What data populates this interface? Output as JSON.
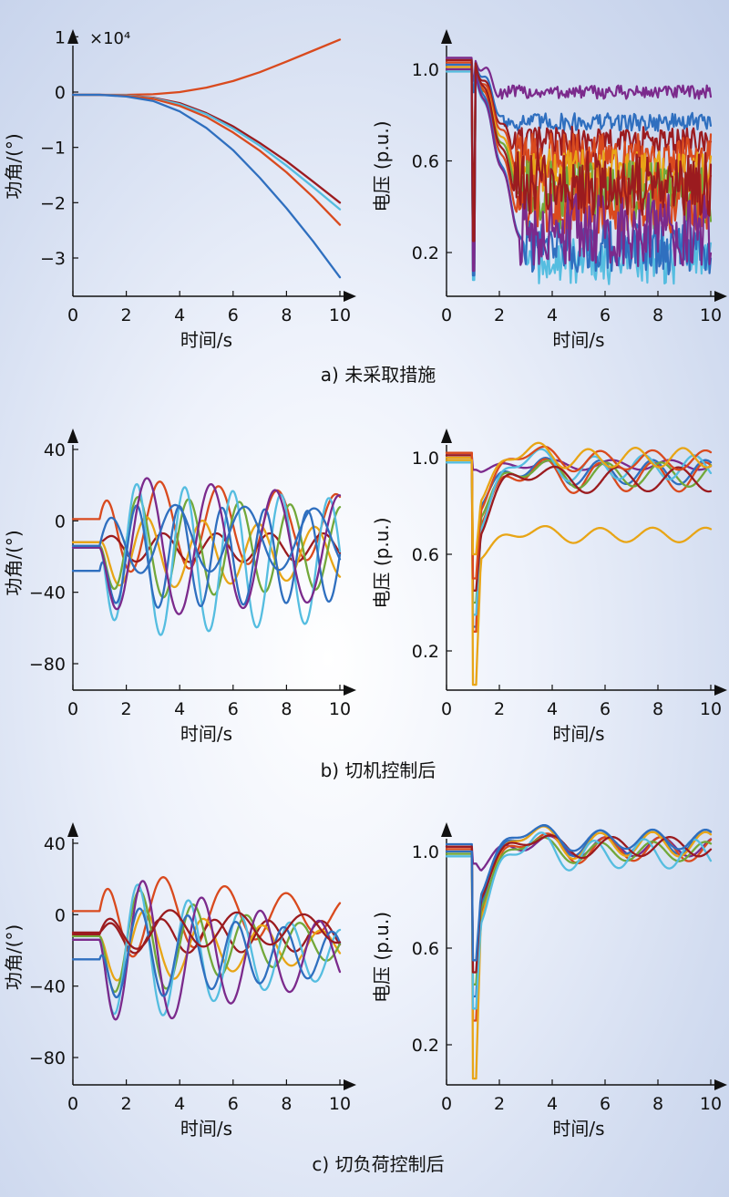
{
  "captions": [
    "a) 未采取措施",
    "b) 切机控制后",
    "c) 切负荷控制后"
  ],
  "palette": [
    "#2f6fbf",
    "#d94a1e",
    "#e8a516",
    "#7b2a8c",
    "#72a83a",
    "#55bde0",
    "#9b1b1f"
  ],
  "chart_data": [
    {
      "id": "a-angle",
      "type": "line",
      "xlabel": "时间/s",
      "ylabel": "功角/(°)",
      "multiplier": "×10⁴",
      "xlim": [
        0,
        10
      ],
      "ylim": [
        -3.6,
        1.0
      ],
      "xticks": [
        0,
        2,
        4,
        6,
        8,
        10
      ],
      "yticks": [
        1,
        0,
        -1,
        -2,
        -3
      ],
      "yticklabels": [
        "1",
        "0",
        "−1",
        "−2",
        "−3"
      ],
      "series": [
        {
          "color": "#d94a1e",
          "x": [
            0,
            1,
            2,
            3,
            4,
            5,
            6,
            7,
            8,
            9,
            10
          ],
          "y": [
            -0.05,
            -0.05,
            -0.05,
            -0.04,
            0.0,
            0.08,
            0.2,
            0.36,
            0.55,
            0.75,
            0.95
          ]
        },
        {
          "color": "#9b1b1f",
          "x": [
            0,
            1,
            2,
            3,
            4,
            5,
            6,
            7,
            8,
            9,
            10
          ],
          "y": [
            -0.05,
            -0.05,
            -0.06,
            -0.1,
            -0.2,
            -0.38,
            -0.62,
            -0.92,
            -1.25,
            -1.62,
            -2.0
          ]
        },
        {
          "color": "#55bde0",
          "x": [
            0,
            1,
            2,
            3,
            4,
            5,
            6,
            7,
            8,
            9,
            10
          ],
          "y": [
            -0.05,
            -0.05,
            -0.06,
            -0.11,
            -0.22,
            -0.4,
            -0.66,
            -0.97,
            -1.33,
            -1.72,
            -2.12
          ]
        },
        {
          "color": "#d94a1e",
          "x": [
            0,
            1,
            2,
            3,
            4,
            5,
            6,
            7,
            8,
            9,
            10
          ],
          "y": [
            -0.05,
            -0.05,
            -0.07,
            -0.12,
            -0.25,
            -0.45,
            -0.73,
            -1.06,
            -1.45,
            -1.9,
            -2.4
          ]
        },
        {
          "color": "#2f6fbf",
          "x": [
            0,
            1,
            2,
            3,
            4,
            5,
            6,
            7,
            8,
            9,
            10
          ],
          "y": [
            -0.05,
            -0.05,
            -0.08,
            -0.16,
            -0.35,
            -0.65,
            -1.05,
            -1.55,
            -2.1,
            -2.7,
            -3.35
          ]
        }
      ]
    },
    {
      "id": "a-voltage",
      "type": "line",
      "style": "unstable",
      "xlabel": "时间/s",
      "ylabel": "电压 (p.u.)",
      "xlim": [
        0,
        10
      ],
      "ylim": [
        0.0,
        1.15
      ],
      "xticks": [
        0,
        2,
        4,
        6,
        8,
        10
      ],
      "yticks": [
        1.0,
        0.6,
        0.2
      ],
      "yticklabels": [
        "1.0",
        "0.6",
        "0.2"
      ],
      "series": [
        {
          "color": "#7b2a8c",
          "base": 1.05,
          "dip": 0.95,
          "settle": 0.9,
          "noise": 0.03,
          "reach": 2.0
        },
        {
          "color": "#2f6fbf",
          "base": 1.04,
          "dip": 0.9,
          "settle": 0.77,
          "noise": 0.04,
          "reach": 2.2
        },
        {
          "color": "#9b1b1f",
          "base": 1.03,
          "dip": 0.45,
          "settle": 0.68,
          "noise": 0.07,
          "reach": 2.4
        },
        {
          "color": "#d94a1e",
          "base": 1.02,
          "dip": 0.3,
          "settle": 0.62,
          "noise": 0.1,
          "reach": 2.5
        },
        {
          "color": "#e8a516",
          "base": 1.01,
          "dip": 0.15,
          "settle": 0.55,
          "noise": 0.1,
          "reach": 2.6
        },
        {
          "color": "#72a83a",
          "base": 1.0,
          "dip": 0.1,
          "settle": 0.45,
          "noise": 0.15,
          "reach": 2.8
        },
        {
          "color": "#d94a1e",
          "base": 1.03,
          "dip": 0.2,
          "settle": 0.42,
          "noise": 0.14,
          "reach": 2.6
        },
        {
          "color": "#55bde0",
          "base": 0.99,
          "dip": 0.08,
          "settle": 0.18,
          "noise": 0.12,
          "reach": 3.0
        },
        {
          "color": "#2f6fbf",
          "base": 1.02,
          "dip": 0.1,
          "settle": 0.22,
          "noise": 0.12,
          "reach": 2.9
        },
        {
          "color": "#7b2a8c",
          "base": 1.0,
          "dip": 0.12,
          "settle": 0.3,
          "noise": 0.16,
          "reach": 2.7
        },
        {
          "color": "#9b1b1f",
          "base": 1.04,
          "dip": 0.25,
          "settle": 0.5,
          "noise": 0.14,
          "reach": 2.5
        }
      ]
    },
    {
      "id": "b-angle",
      "type": "line",
      "xlabel": "时间/s",
      "ylabel": "功角/(°)",
      "xlim": [
        0,
        10
      ],
      "ylim": [
        -95,
        55
      ],
      "xticks": [
        0,
        2,
        4,
        6,
        8,
        10
      ],
      "yticks": [
        40,
        0,
        -40,
        -80
      ],
      "yticklabels": [
        "40",
        "0",
        "−40",
        "−80"
      ],
      "series": [
        {
          "color": "#d94a1e",
          "pre": 1,
          "onset": 1.0,
          "center": -3,
          "amp": 28,
          "period": 2.2,
          "phase": 1.4,
          "decay": 0.05
        },
        {
          "color": "#9b1b1f",
          "pre": -12,
          "onset": 1.0,
          "center": -15,
          "amp": 8,
          "period": 2.0,
          "phase": 0.4,
          "decay": 0.0
        },
        {
          "color": "#e8a516",
          "pre": -12,
          "onset": 1.0,
          "center": -18,
          "amp": 22,
          "period": 2.1,
          "phase": 2.6,
          "decay": 0.05
        },
        {
          "color": "#72a83a",
          "pre": -14,
          "onset": 1.0,
          "center": -15,
          "amp": 30,
          "period": 1.9,
          "phase": 3.1,
          "decay": 0.03
        },
        {
          "color": "#55bde0",
          "pre": -15,
          "onset": 1.0,
          "center": -22,
          "amp": 45,
          "period": 1.8,
          "phase": 3.0,
          "decay": 0.03
        },
        {
          "color": "#2f6fbf",
          "pre": -28,
          "onset": 1.0,
          "center": -20,
          "amp": 30,
          "period": 1.6,
          "phase": 2.4,
          "decay": 0.02
        },
        {
          "color": "#7b2a8c",
          "pre": -15,
          "onset": 1.0,
          "center": -15,
          "amp": 42,
          "period": 2.4,
          "phase": 3.2,
          "decay": 0.04
        },
        {
          "color": "#2f6fbf",
          "pre": -14,
          "onset": 1.0,
          "center": -10,
          "amp": 20,
          "period": 2.6,
          "phase": 1.0,
          "decay": 0.02
        }
      ]
    },
    {
      "id": "b-voltage",
      "type": "line",
      "style": "damped",
      "xlabel": "时间/s",
      "ylabel": "电压 (p.u.)",
      "xlim": [
        0,
        10
      ],
      "ylim": [
        0.0,
        1.15
      ],
      "xticks": [
        0,
        2,
        4,
        6,
        8,
        10
      ],
      "yticks": [
        1.0,
        0.6,
        0.2
      ],
      "yticklabels": [
        "1.0",
        "0.6",
        "0.2"
      ],
      "series": [
        {
          "color": "#7b2a8c",
          "base": 1.01,
          "spike": 0.95,
          "trough": 0.94,
          "settle": 0.97,
          "amp": 0.02,
          "period": 2.2
        },
        {
          "color": "#2f6fbf",
          "base": 1.0,
          "spike": 0.3,
          "trough": 0.8,
          "settle": 0.94,
          "amp": 0.05,
          "period": 2.0
        },
        {
          "color": "#d94a1e",
          "base": 1.02,
          "spike": 0.28,
          "trough": 0.72,
          "settle": 0.92,
          "amp": 0.06,
          "period": 2.0
        },
        {
          "color": "#72a83a",
          "base": 0.99,
          "spike": 0.4,
          "trough": 0.75,
          "settle": 0.93,
          "amp": 0.05,
          "period": 2.1
        },
        {
          "color": "#55bde0",
          "base": 0.98,
          "spike": 0.35,
          "trough": 0.7,
          "settle": 0.96,
          "amp": 0.05,
          "period": 1.9
        },
        {
          "color": "#9b1b1f",
          "base": 1.01,
          "spike": 0.45,
          "trough": 0.68,
          "settle": 0.91,
          "amp": 0.05,
          "period": 2.3
        },
        {
          "color": "#e8a516",
          "base": 1.0,
          "spike": 0.06,
          "trough": 0.58,
          "settle": 0.68,
          "amp": 0.03,
          "period": 2.0
        },
        {
          "color": "#d94a1e",
          "base": 1.02,
          "spike": 0.5,
          "trough": 0.78,
          "settle": 0.99,
          "amp": 0.04,
          "period": 2.0
        },
        {
          "color": "#e8a516",
          "base": 0.99,
          "spike": 0.6,
          "trough": 0.82,
          "settle": 1.0,
          "amp": 0.04,
          "period": 1.8
        }
      ]
    },
    {
      "id": "c-angle",
      "type": "line",
      "xlabel": "时间/s",
      "ylabel": "功角/(°)",
      "xlim": [
        0,
        10
      ],
      "ylim": [
        -95,
        55
      ],
      "xticks": [
        0,
        2,
        4,
        6,
        8,
        10
      ],
      "yticks": [
        40,
        0,
        -40,
        -80
      ],
      "yticklabels": [
        "40",
        "0",
        "−40",
        "−80"
      ],
      "series": [
        {
          "color": "#d94a1e",
          "pre": 2,
          "onset": 1.0,
          "center": 0,
          "amp": 28,
          "period": 2.3,
          "phase": 1.3,
          "decay": 0.12
        },
        {
          "color": "#9b1b1f",
          "pre": -10,
          "onset": 1.0,
          "center": -12,
          "amp": 10,
          "period": 2.0,
          "phase": 0.6,
          "decay": 0.02
        },
        {
          "color": "#e8a516",
          "pre": -12,
          "onset": 1.0,
          "center": -18,
          "amp": 25,
          "period": 2.2,
          "phase": 3.0,
          "decay": 0.12
        },
        {
          "color": "#72a83a",
          "pre": -12,
          "onset": 1.0,
          "center": -16,
          "amp": 38,
          "period": 2.0,
          "phase": 3.1,
          "decay": 0.16
        },
        {
          "color": "#55bde0",
          "pre": -14,
          "onset": 1.0,
          "center": -22,
          "amp": 48,
          "period": 1.9,
          "phase": 3.1,
          "decay": 0.14
        },
        {
          "color": "#7b2a8c",
          "pre": -14,
          "onset": 1.0,
          "center": -22,
          "amp": 50,
          "period": 2.2,
          "phase": 3.2,
          "decay": 0.12
        },
        {
          "color": "#2f6fbf",
          "pre": -25,
          "onset": 1.0,
          "center": -22,
          "amp": 30,
          "period": 1.8,
          "phase": 2.6,
          "decay": 0.1
        },
        {
          "color": "#9b1b1f",
          "pre": -11,
          "onset": 1.0,
          "center": -8,
          "amp": 12,
          "period": 2.5,
          "phase": 1.2,
          "decay": 0.05
        }
      ]
    },
    {
      "id": "c-voltage",
      "type": "line",
      "style": "damped",
      "xlabel": "时间/s",
      "ylabel": "电压 (p.u.)",
      "xlim": [
        0,
        10
      ],
      "ylim": [
        0.0,
        1.15
      ],
      "xticks": [
        0,
        2,
        4,
        6,
        8,
        10
      ],
      "yticks": [
        1.0,
        0.6,
        0.2
      ],
      "yticklabels": [
        "1.0",
        "0.6",
        "0.2"
      ],
      "series": [
        {
          "color": "#7b2a8c",
          "base": 1.02,
          "spike": 0.95,
          "trough": 0.92,
          "settle": 1.02,
          "amp": 0.04,
          "period": 2.1
        },
        {
          "color": "#2f6fbf",
          "base": 1.03,
          "spike": 0.4,
          "trough": 0.78,
          "settle": 1.04,
          "amp": 0.05,
          "period": 2.0
        },
        {
          "color": "#d94a1e",
          "base": 1.01,
          "spike": 0.3,
          "trough": 0.74,
          "settle": 1.01,
          "amp": 0.05,
          "period": 2.1
        },
        {
          "color": "#e8a516",
          "base": 1.0,
          "spike": 0.06,
          "trough": 0.72,
          "settle": 1.03,
          "amp": 0.05,
          "period": 2.0
        },
        {
          "color": "#72a83a",
          "base": 0.99,
          "spike": 0.45,
          "trough": 0.76,
          "settle": 1.0,
          "amp": 0.04,
          "period": 2.0
        },
        {
          "color": "#55bde0",
          "base": 0.98,
          "spike": 0.35,
          "trough": 0.7,
          "settle": 0.99,
          "amp": 0.06,
          "period": 1.9
        },
        {
          "color": "#9b1b1f",
          "base": 1.02,
          "spike": 0.5,
          "trough": 0.8,
          "settle": 1.02,
          "amp": 0.04,
          "period": 2.2
        },
        {
          "color": "#2f6fbf",
          "base": 1.0,
          "spike": 0.55,
          "trough": 0.82,
          "settle": 1.05,
          "amp": 0.04,
          "period": 2.0
        }
      ]
    }
  ]
}
